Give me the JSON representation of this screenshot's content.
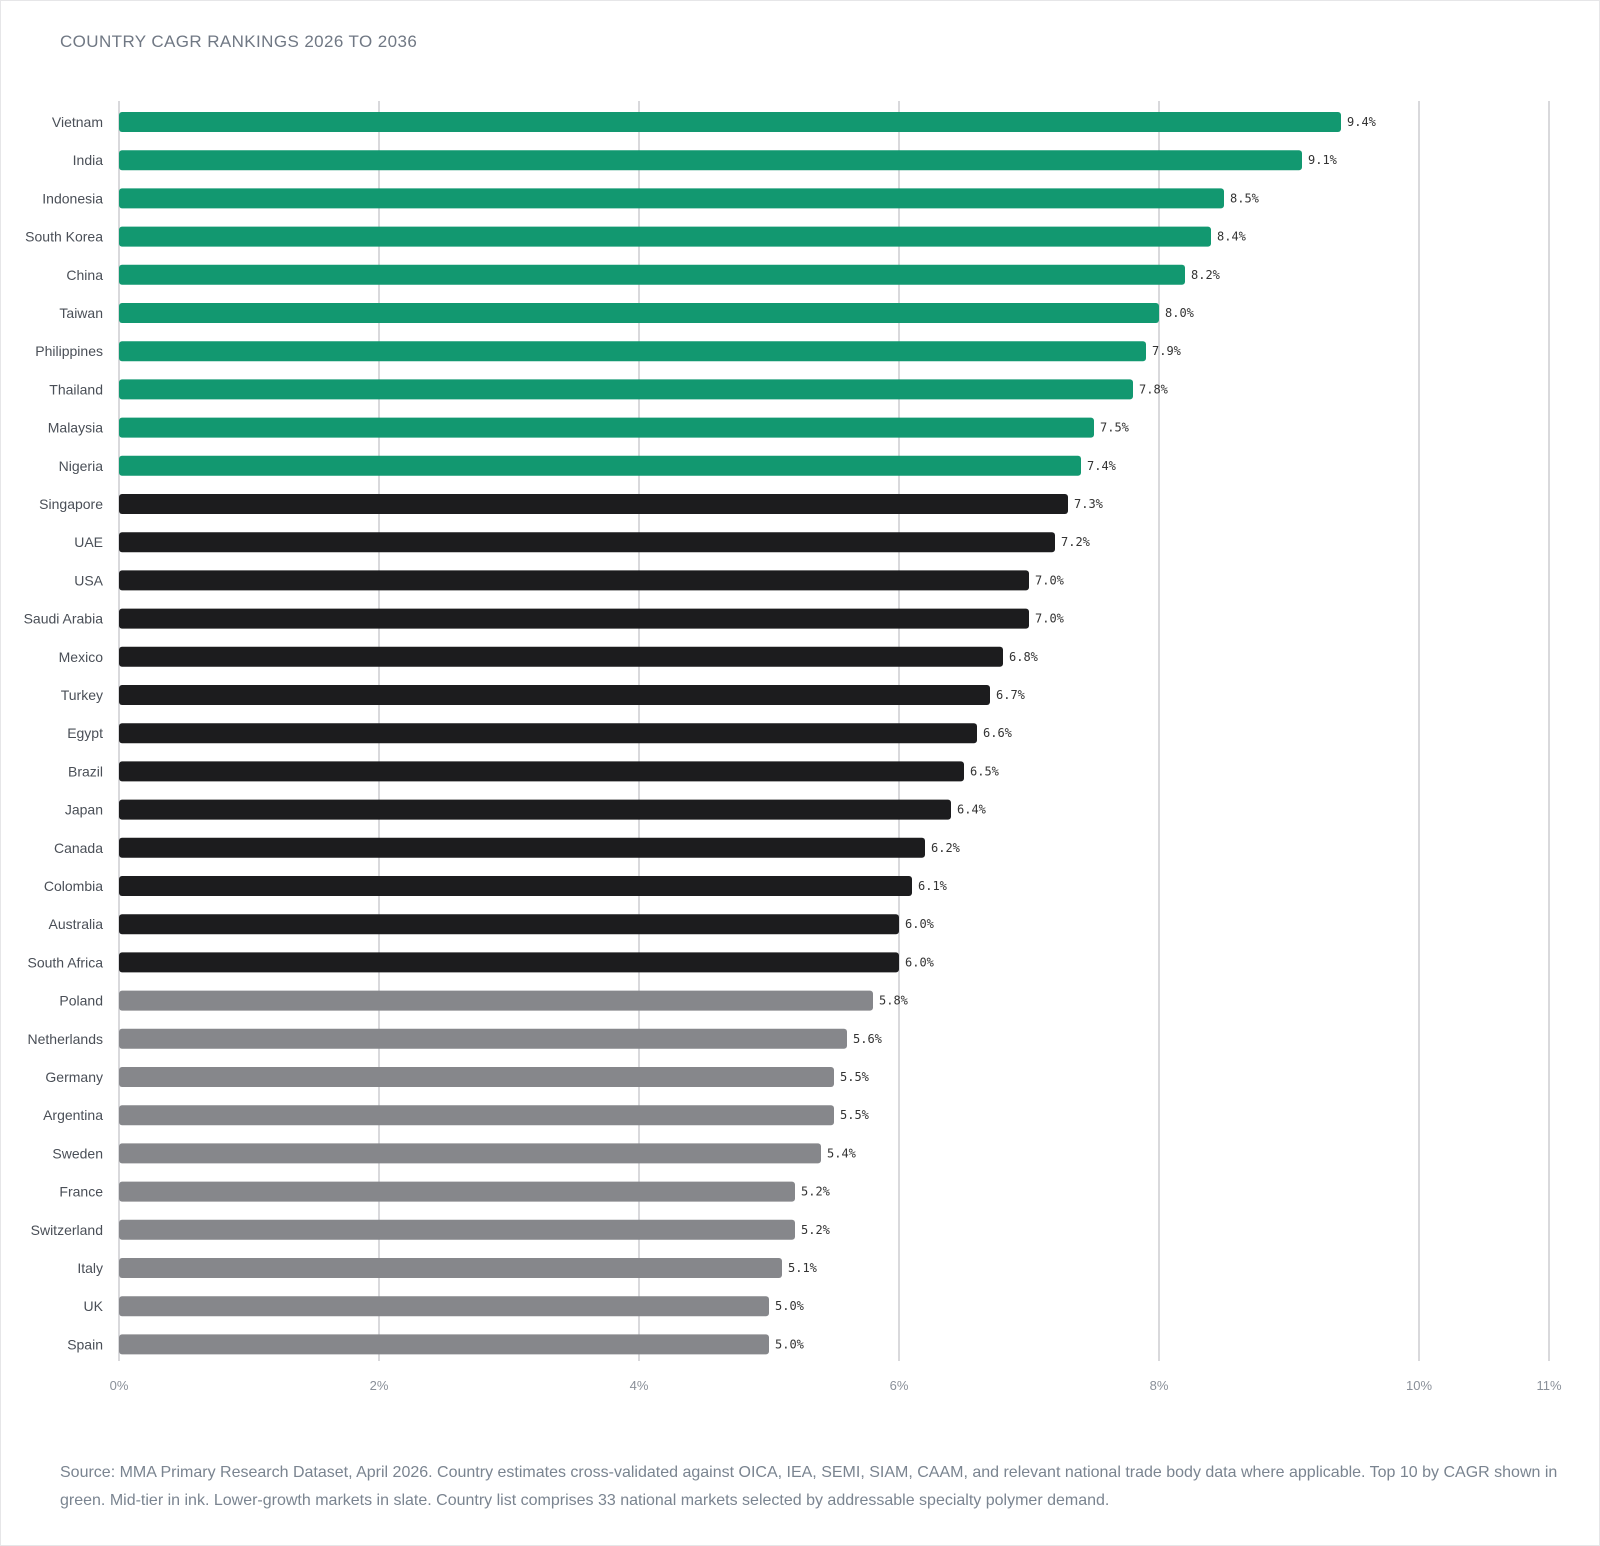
{
  "title": "COUNTRY CAGR RANKINGS 2026 TO 2036",
  "source_note": "Source: MMA Primary Research Dataset, April 2026. Country estimates cross-validated against OICA, IEA, SEMI, SIAM, CAAM, and relevant national trade body data where applicable. Top 10 by CAGR shown in green. Mid-tier in ink. Lower-growth markets in slate. Country list comprises 33 national markets selected by addressable specialty polymer demand.",
  "colors": {
    "top": "#129870",
    "mid": "#1c1c1e",
    "low": "#86878b",
    "grid": "#d9d9dc"
  },
  "chart_data": {
    "type": "bar",
    "orientation": "horizontal",
    "title": "COUNTRY CAGR RANKINGS 2026 TO 2036",
    "xlabel": "",
    "ylabel": "",
    "xlim": [
      0,
      11
    ],
    "x_ticks": [
      {
        "value": 0,
        "label": "0%"
      },
      {
        "value": 2,
        "label": "2%"
      },
      {
        "value": 4,
        "label": "4%"
      },
      {
        "value": 6,
        "label": "6%"
      },
      {
        "value": 8,
        "label": "8%"
      },
      {
        "value": 10,
        "label": "10%"
      },
      {
        "value": 11,
        "label": "11%"
      }
    ],
    "grid": true,
    "bars": [
      {
        "category": "Vietnam",
        "value": 9.4,
        "label": "9.4%",
        "tier": "top"
      },
      {
        "category": "India",
        "value": 9.1,
        "label": "9.1%",
        "tier": "top"
      },
      {
        "category": "Indonesia",
        "value": 8.5,
        "label": "8.5%",
        "tier": "top"
      },
      {
        "category": "South Korea",
        "value": 8.4,
        "label": "8.4%",
        "tier": "top"
      },
      {
        "category": "China",
        "value": 8.2,
        "label": "8.2%",
        "tier": "top"
      },
      {
        "category": "Taiwan",
        "value": 8.0,
        "label": "8.0%",
        "tier": "top"
      },
      {
        "category": "Philippines",
        "value": 7.9,
        "label": "7.9%",
        "tier": "top"
      },
      {
        "category": "Thailand",
        "value": 7.8,
        "label": "7.8%",
        "tier": "top"
      },
      {
        "category": "Malaysia",
        "value": 7.5,
        "label": "7.5%",
        "tier": "top"
      },
      {
        "category": "Nigeria",
        "value": 7.4,
        "label": "7.4%",
        "tier": "top"
      },
      {
        "category": "Singapore",
        "value": 7.3,
        "label": "7.3%",
        "tier": "mid"
      },
      {
        "category": "UAE",
        "value": 7.2,
        "label": "7.2%",
        "tier": "mid"
      },
      {
        "category": "USA",
        "value": 7.0,
        "label": "7.0%",
        "tier": "mid"
      },
      {
        "category": "Saudi Arabia",
        "value": 7.0,
        "label": "7.0%",
        "tier": "mid"
      },
      {
        "category": "Mexico",
        "value": 6.8,
        "label": "6.8%",
        "tier": "mid"
      },
      {
        "category": "Turkey",
        "value": 6.7,
        "label": "6.7%",
        "tier": "mid"
      },
      {
        "category": "Egypt",
        "value": 6.6,
        "label": "6.6%",
        "tier": "mid"
      },
      {
        "category": "Brazil",
        "value": 6.5,
        "label": "6.5%",
        "tier": "mid"
      },
      {
        "category": "Japan",
        "value": 6.4,
        "label": "6.4%",
        "tier": "mid"
      },
      {
        "category": "Canada",
        "value": 6.2,
        "label": "6.2%",
        "tier": "mid"
      },
      {
        "category": "Colombia",
        "value": 6.1,
        "label": "6.1%",
        "tier": "mid"
      },
      {
        "category": "Australia",
        "value": 6.0,
        "label": "6.0%",
        "tier": "mid"
      },
      {
        "category": "South Africa",
        "value": 6.0,
        "label": "6.0%",
        "tier": "mid"
      },
      {
        "category": "Poland",
        "value": 5.8,
        "label": "5.8%",
        "tier": "low"
      },
      {
        "category": "Netherlands",
        "value": 5.6,
        "label": "5.6%",
        "tier": "low"
      },
      {
        "category": "Germany",
        "value": 5.5,
        "label": "5.5%",
        "tier": "low"
      },
      {
        "category": "Argentina",
        "value": 5.5,
        "label": "5.5%",
        "tier": "low"
      },
      {
        "category": "Sweden",
        "value": 5.4,
        "label": "5.4%",
        "tier": "low"
      },
      {
        "category": "France",
        "value": 5.2,
        "label": "5.2%",
        "tier": "low"
      },
      {
        "category": "Switzerland",
        "value": 5.2,
        "label": "5.2%",
        "tier": "low"
      },
      {
        "category": "Italy",
        "value": 5.1,
        "label": "5.1%",
        "tier": "low"
      },
      {
        "category": "UK",
        "value": 5.0,
        "label": "5.0%",
        "tier": "low"
      },
      {
        "category": "Spain",
        "value": 5.0,
        "label": "5.0%",
        "tier": "low"
      }
    ]
  }
}
